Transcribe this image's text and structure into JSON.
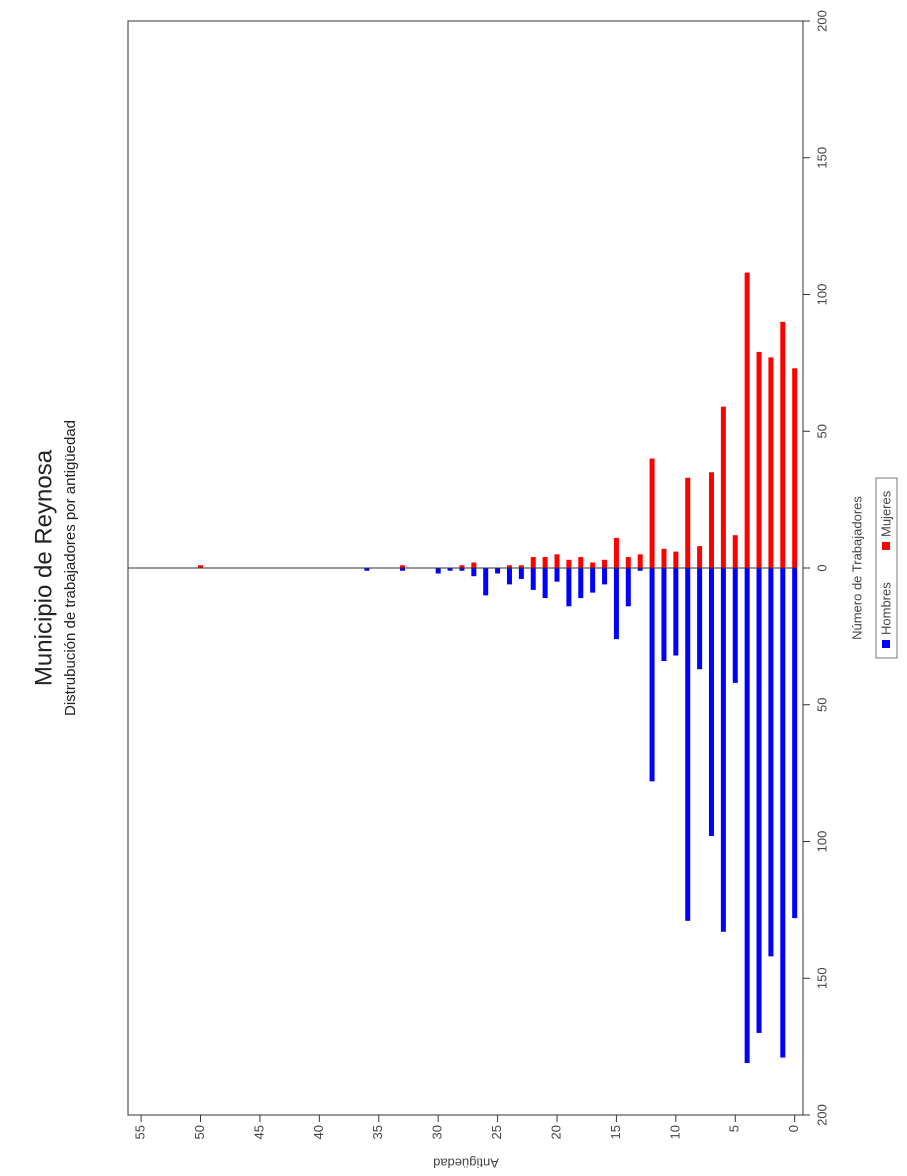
{
  "chart_data": {
    "type": "bar",
    "title": "Municipio de Reynosa",
    "subtitle": "Distrubución de trabajadores por antigüedad",
    "x_label": "Antigüedad",
    "y_label": "Número de Trabajadores",
    "x": [
      0,
      1,
      2,
      3,
      4,
      5,
      6,
      7,
      8,
      9,
      10,
      11,
      12,
      13,
      14,
      15,
      16,
      17,
      18,
      19,
      20,
      21,
      22,
      23,
      24,
      25,
      26,
      27,
      28,
      29,
      30,
      31,
      32,
      33,
      34,
      35,
      36,
      37,
      38,
      39,
      40,
      41,
      42,
      43,
      44,
      45,
      46,
      47,
      48,
      49,
      50
    ],
    "series": [
      {
        "name": "Hombres",
        "color": "#0000ff",
        "values": [
          -128,
          -179,
          -142,
          -170,
          -181,
          -42,
          -133,
          -98,
          -37,
          -129,
          -32,
          -34,
          -78,
          -1,
          -14,
          -26,
          -6,
          -9,
          -11,
          -14,
          -5,
          -11,
          -8,
          -4,
          -6,
          -2,
          -10,
          -3,
          -1,
          -1,
          -2,
          0,
          0,
          -1,
          0,
          0,
          -1,
          0,
          0,
          0,
          0,
          0,
          0,
          0,
          0,
          0,
          0,
          0,
          0,
          0,
          0
        ]
      },
      {
        "name": "Mujeres",
        "color": "#ff0000",
        "values": [
          73,
          90,
          77,
          79,
          108,
          12,
          59,
          35,
          8,
          33,
          6,
          7,
          40,
          5,
          4,
          11,
          3,
          2,
          4,
          3,
          5,
          4,
          4,
          1,
          1,
          0,
          0,
          2,
          1,
          0,
          0,
          0,
          0,
          1,
          0,
          0,
          0,
          0,
          0,
          0,
          0,
          0,
          0,
          0,
          0,
          0,
          0,
          0,
          0,
          0,
          1
        ]
      }
    ],
    "xlim": [
      -0.7,
      56.1
    ],
    "xticks": [
      0,
      5,
      10,
      15,
      20,
      25,
      30,
      35,
      40,
      45,
      50,
      55
    ],
    "ylim": [
      -200,
      200
    ],
    "yticks": [
      {
        "value": -200,
        "label": "200"
      },
      {
        "value": -150,
        "label": "150"
      },
      {
        "value": -100,
        "label": "100"
      },
      {
        "value": -50,
        "label": "50"
      },
      0,
      50,
      100,
      150,
      200
    ]
  }
}
